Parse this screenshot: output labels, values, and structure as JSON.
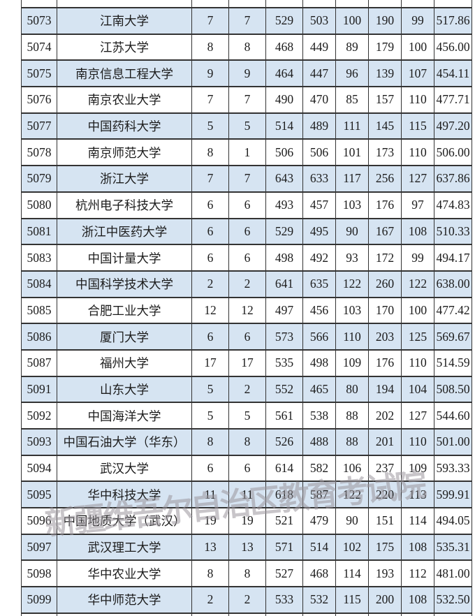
{
  "watermark": {
    "text": "新疆维吾尔自治区教育考试院",
    "color": "rgba(155,150,156,0.55)"
  },
  "table": {
    "row_colors": {
      "blue": "#d6e4f2",
      "white": "#ffffff"
    },
    "border_color": "#333333",
    "first_row_stripe": "blue",
    "rows": [
      [
        "5073",
        "江南大学",
        "7",
        "7",
        "529",
        "503",
        "100",
        "190",
        "99",
        "517.86"
      ],
      [
        "5074",
        "江苏大学",
        "8",
        "8",
        "468",
        "449",
        "89",
        "179",
        "100",
        "456.00"
      ],
      [
        "5075",
        "南京信息工程大学",
        "9",
        "9",
        "464",
        "447",
        "96",
        "139",
        "107",
        "454.11"
      ],
      [
        "5076",
        "南京农业大学",
        "7",
        "7",
        "490",
        "470",
        "85",
        "157",
        "110",
        "477.71"
      ],
      [
        "5077",
        "中国药科大学",
        "5",
        "5",
        "514",
        "489",
        "111",
        "145",
        "115",
        "497.20"
      ],
      [
        "5078",
        "南京师范大学",
        "8",
        "1",
        "506",
        "506",
        "101",
        "173",
        "110",
        "506.00"
      ],
      [
        "5079",
        "浙江大学",
        "7",
        "7",
        "643",
        "633",
        "117",
        "256",
        "127",
        "637.86"
      ],
      [
        "5080",
        "杭州电子科技大学",
        "6",
        "6",
        "493",
        "457",
        "103",
        "176",
        "97",
        "474.83"
      ],
      [
        "5081",
        "浙江中医药大学",
        "6",
        "6",
        "529",
        "495",
        "90",
        "167",
        "108",
        "510.33"
      ],
      [
        "5083",
        "中国计量大学",
        "6",
        "6",
        "498",
        "492",
        "93",
        "172",
        "99",
        "494.17"
      ],
      [
        "5084",
        "中国科学技术大学",
        "2",
        "2",
        "641",
        "635",
        "122",
        "260",
        "122",
        "638.00"
      ],
      [
        "5085",
        "合肥工业大学",
        "12",
        "12",
        "497",
        "456",
        "103",
        "170",
        "100",
        "477.42"
      ],
      [
        "5086",
        "厦门大学",
        "6",
        "6",
        "573",
        "566",
        "110",
        "203",
        "125",
        "569.67"
      ],
      [
        "5087",
        "福州大学",
        "17",
        "17",
        "535",
        "498",
        "109",
        "176",
        "110",
        "514.59"
      ],
      [
        "5091",
        "山东大学",
        "5",
        "2",
        "552",
        "465",
        "80",
        "194",
        "104",
        "508.50"
      ],
      [
        "5092",
        "中国海洋大学",
        "5",
        "5",
        "561",
        "538",
        "88",
        "202",
        "127",
        "544.60"
      ],
      [
        "5093",
        "中国石油大学（华东）",
        "8",
        "8",
        "526",
        "488",
        "88",
        "201",
        "110",
        "501.00"
      ],
      [
        "5094",
        "武汉大学",
        "6",
        "6",
        "614",
        "582",
        "106",
        "237",
        "109",
        "593.33"
      ],
      [
        "5095",
        "华中科技大学",
        "11",
        "11",
        "618",
        "587",
        "122",
        "220",
        "113",
        "599.91"
      ],
      [
        "5096",
        "中国地质大学（武汉）",
        "19",
        "19",
        "521",
        "479",
        "90",
        "151",
        "114",
        "494.05"
      ],
      [
        "5097",
        "武汉理工大学",
        "13",
        "13",
        "571",
        "514",
        "102",
        "175",
        "108",
        "535.31"
      ],
      [
        "5098",
        "华中农业大学",
        "8",
        "8",
        "527",
        "468",
        "114",
        "193",
        "112",
        "481.00"
      ],
      [
        "5099",
        "华中师范大学",
        "2",
        "2",
        "533",
        "532",
        "115",
        "200",
        "108",
        "532.50"
      ]
    ]
  }
}
